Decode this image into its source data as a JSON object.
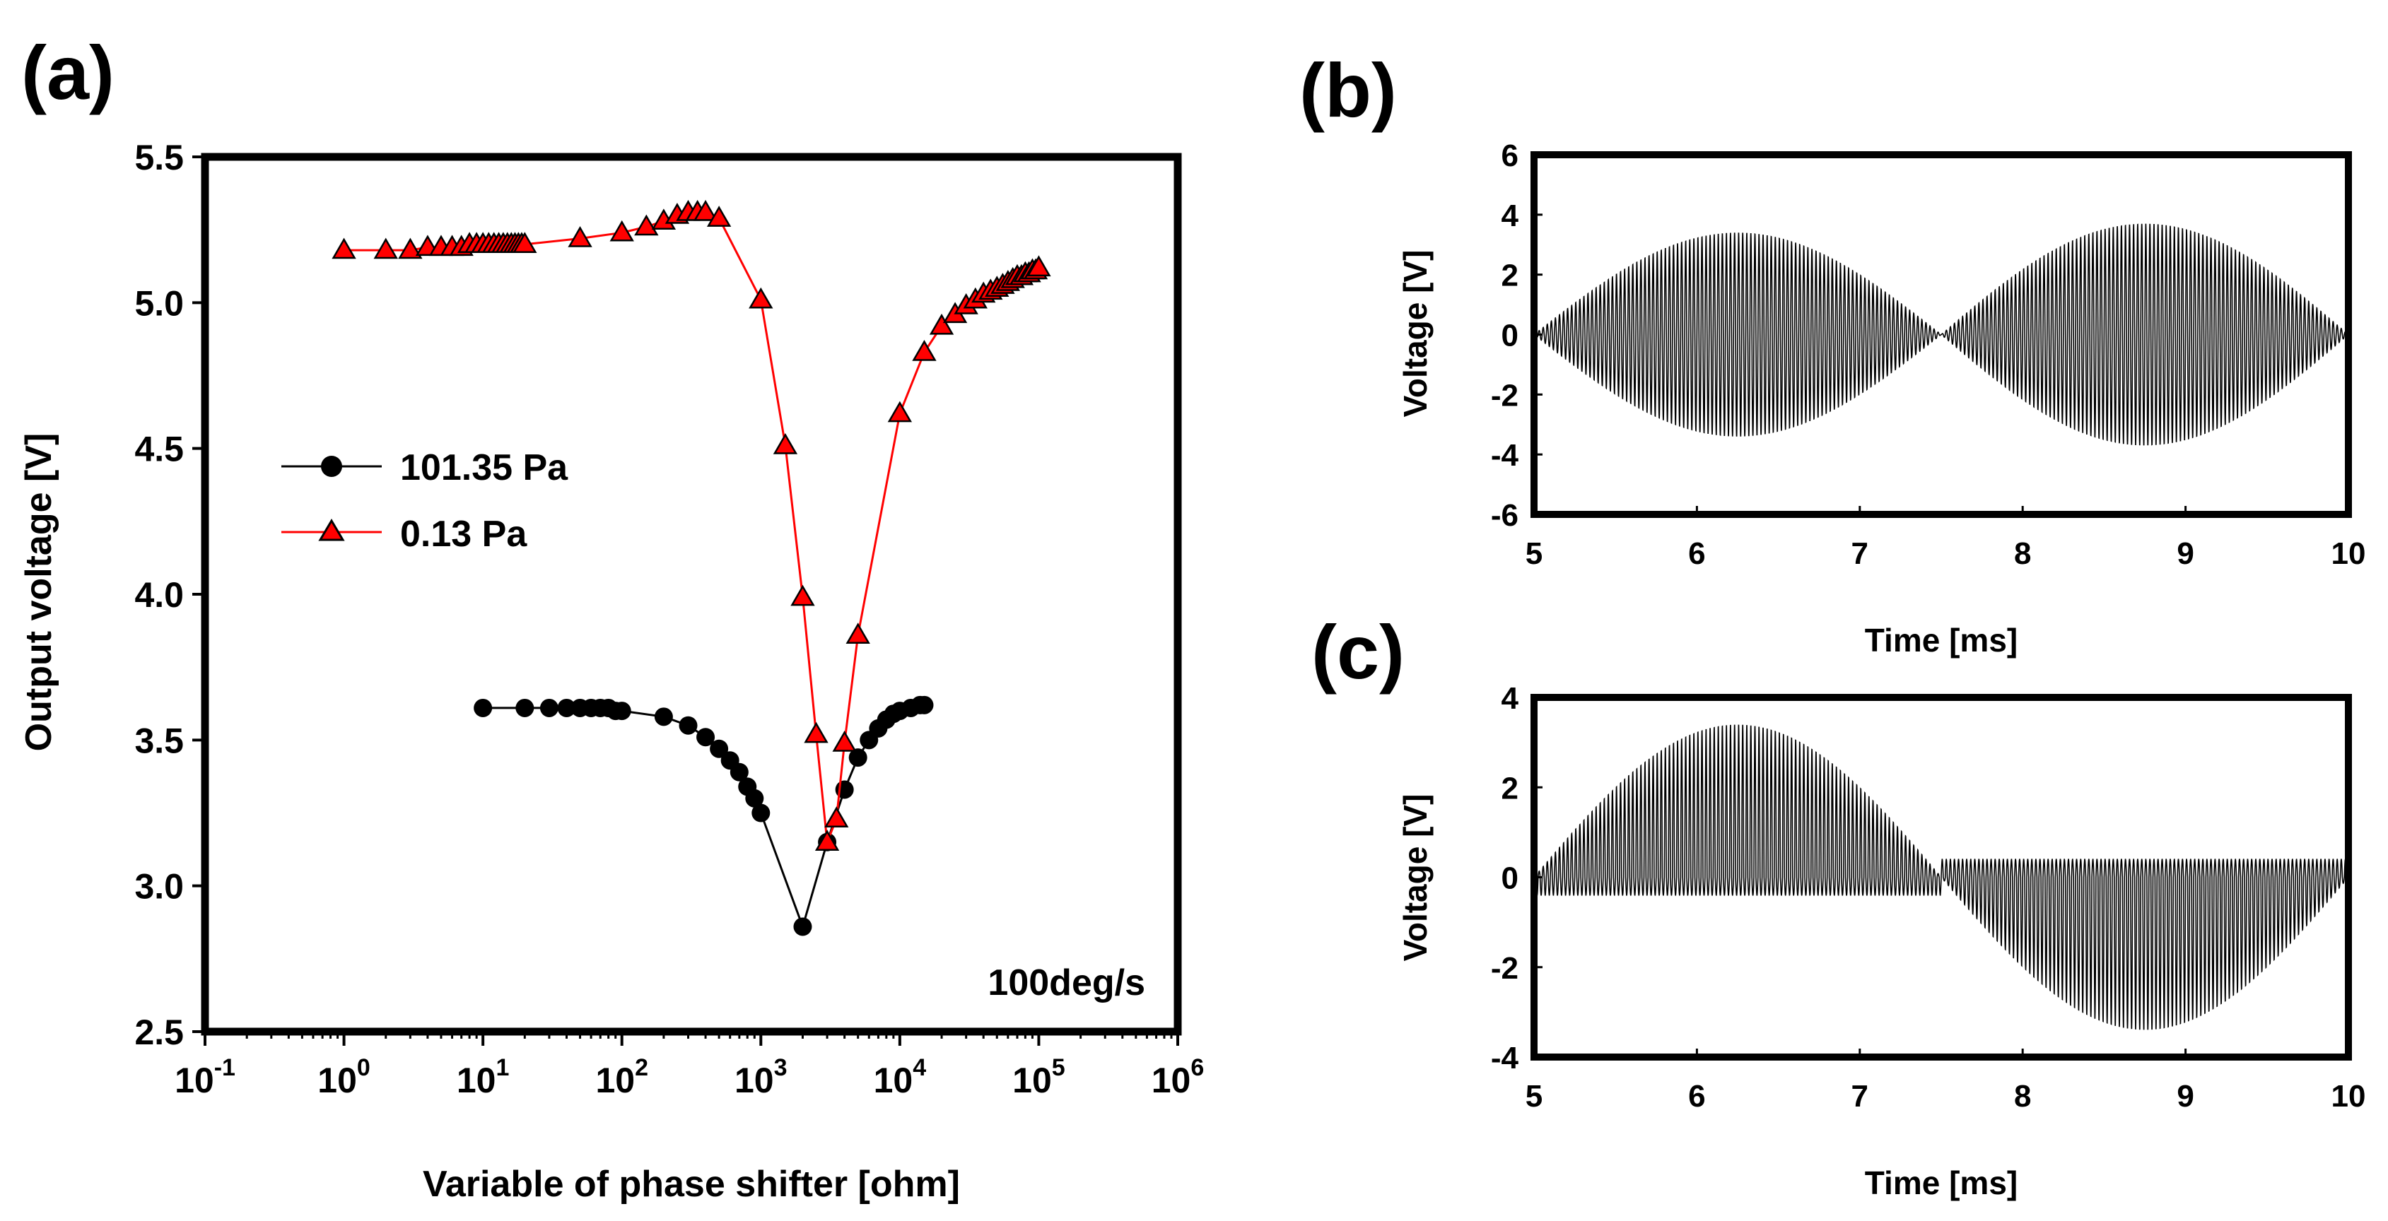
{
  "chart_data": [
    {
      "id": "a",
      "panel_label": "(a)",
      "type": "line",
      "x_scale": "log",
      "xlabel": "Variable of phase shifter [ohm]",
      "ylabel": "Output voltage [V]",
      "xlim": [
        0.1,
        1000000
      ],
      "ylim": [
        2.5,
        5.5
      ],
      "x_ticks": [
        {
          "base": "10",
          "exp": "-1"
        },
        {
          "base": "10",
          "exp": "0"
        },
        {
          "base": "10",
          "exp": "1"
        },
        {
          "base": "10",
          "exp": "2"
        },
        {
          "base": "10",
          "exp": "3"
        },
        {
          "base": "10",
          "exp": "4"
        },
        {
          "base": "10",
          "exp": "5"
        },
        {
          "base": "10",
          "exp": "6"
        }
      ],
      "y_ticks": [
        "2.5",
        "3.0",
        "3.5",
        "4.0",
        "4.5",
        "5.0",
        "5.5"
      ],
      "annotation": "100deg/s",
      "legend_position": "center-left",
      "series": [
        {
          "name": "101.35 Pa",
          "color": "#000000",
          "marker": "circle",
          "x": [
            10,
            20,
            30,
            40,
            50,
            60,
            70,
            80,
            90,
            100,
            200,
            300,
            400,
            500,
            600,
            700,
            800,
            900,
            1000,
            2000,
            3000,
            4000,
            5000,
            6000,
            7000,
            8000,
            9000,
            10000,
            12000,
            14000,
            15000
          ],
          "y": [
            3.61,
            3.61,
            3.61,
            3.61,
            3.61,
            3.61,
            3.61,
            3.61,
            3.6,
            3.6,
            3.58,
            3.55,
            3.51,
            3.47,
            3.43,
            3.39,
            3.34,
            3.3,
            3.25,
            2.86,
            3.15,
            3.33,
            3.44,
            3.5,
            3.54,
            3.57,
            3.59,
            3.6,
            3.61,
            3.62,
            3.62
          ]
        },
        {
          "name": "0.13 Pa",
          "color": "#ff0000",
          "marker": "triangle",
          "x": [
            1,
            2,
            3,
            4,
            5,
            6,
            7,
            8,
            9,
            10,
            11,
            12,
            13,
            14,
            15,
            16,
            17,
            18,
            19,
            20,
            50,
            100,
            150,
            200,
            250,
            300,
            350,
            400,
            500,
            1000,
            1500,
            2000,
            2500,
            3000,
            3500,
            4000,
            5000,
            10000,
            15000,
            20000,
            25000,
            30000,
            35000,
            40000,
            45000,
            50000,
            55000,
            60000,
            65000,
            70000,
            75000,
            80000,
            85000,
            90000,
            95000,
            100000
          ],
          "y": [
            5.18,
            5.18,
            5.18,
            5.19,
            5.19,
            5.19,
            5.19,
            5.2,
            5.2,
            5.2,
            5.2,
            5.2,
            5.2,
            5.2,
            5.2,
            5.2,
            5.2,
            5.2,
            5.2,
            5.2,
            5.22,
            5.24,
            5.26,
            5.28,
            5.3,
            5.31,
            5.31,
            5.31,
            5.29,
            5.01,
            4.51,
            3.99,
            3.52,
            3.15,
            3.23,
            3.49,
            3.86,
            4.62,
            4.83,
            4.92,
            4.96,
            4.99,
            5.01,
            5.03,
            5.04,
            5.05,
            5.06,
            5.07,
            5.08,
            5.09,
            5.09,
            5.1,
            5.1,
            5.11,
            5.11,
            5.12
          ]
        }
      ]
    },
    {
      "id": "b",
      "panel_label": "(b)",
      "type": "line",
      "xlabel": "Time [ms]",
      "ylabel": "Voltage [V]",
      "xlim": [
        5,
        10
      ],
      "ylim": [
        -6,
        6
      ],
      "x_ticks": [
        "5",
        "6",
        "7",
        "8",
        "9",
        "10"
      ],
      "y_ticks": [
        "-6",
        "-4",
        "-2",
        "0",
        "2",
        "4",
        "6"
      ],
      "signal": {
        "description": "amplitude-modulated oscillation, symmetric about 0",
        "carrier_cycles_per_ms": 40,
        "segments": [
          {
            "t_start": 5,
            "t_end": 7.5,
            "peak_time": 6.25,
            "peak_amplitude": 3.4,
            "direction": "both"
          },
          {
            "t_start": 7.5,
            "t_end": 10,
            "peak_time": 8.75,
            "peak_amplitude": 3.7,
            "direction": "both"
          }
        ]
      }
    },
    {
      "id": "c",
      "panel_label": "(c)",
      "type": "line",
      "xlabel": "Time [ms]",
      "ylabel": "Voltage [V]",
      "xlim": [
        5,
        10
      ],
      "ylim": [
        -4,
        4
      ],
      "x_ticks": [
        "5",
        "6",
        "7",
        "8",
        "9",
        "10"
      ],
      "y_ticks": [
        "-4",
        "-2",
        "0",
        "2",
        "4"
      ],
      "signal": {
        "description": "half-rectified modulated oscillation: positive in first half, negative in second half",
        "carrier_cycles_per_ms": 40,
        "baseline_ripple": 0.4,
        "segments": [
          {
            "t_start": 5,
            "t_end": 7.5,
            "peak_time": 6.25,
            "peak_amplitude": 3.4,
            "direction": "up"
          },
          {
            "t_start": 7.5,
            "t_end": 10,
            "peak_time": 8.75,
            "peak_amplitude": 3.4,
            "direction": "down"
          }
        ]
      }
    }
  ]
}
